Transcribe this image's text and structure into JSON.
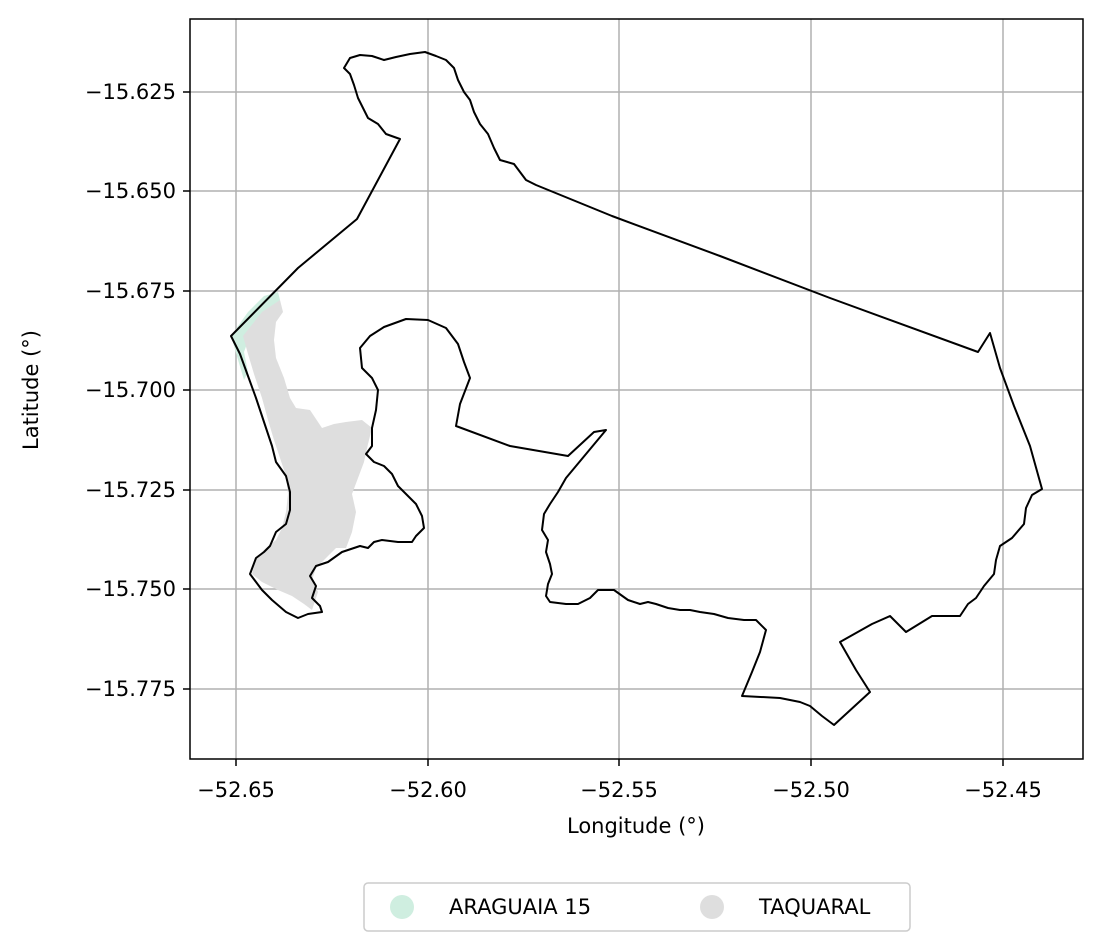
{
  "chart_data": {
    "type": "map",
    "xlabel": "Longitude (°)",
    "ylabel": "Latitude (°)",
    "xlim": [
      -52.662,
      -52.43
    ],
    "ylim": [
      -15.7935,
      -15.6065
    ],
    "xticks": [
      -52.65,
      -52.6,
      -52.55,
      -52.5,
      -52.45
    ],
    "xtick_labels": [
      "−52.65",
      "−52.60",
      "−52.55",
      "−52.50",
      "−52.45"
    ],
    "yticks": [
      -15.625,
      -15.65,
      -15.675,
      -15.7,
      -15.725,
      -15.75,
      -15.775
    ],
    "ytick_labels": [
      "−15.625",
      "−15.650",
      "−15.675",
      "−15.700",
      "−15.725",
      "−15.750",
      "−15.775"
    ],
    "grid": true,
    "legend_position": "bottom-center",
    "legend": [
      {
        "label": "ARAGUAIA 15",
        "color": "#cfeee0"
      },
      {
        "label": "TAQUARAL",
        "color": "#dedede"
      }
    ],
    "boundary_color": "#000000"
  }
}
